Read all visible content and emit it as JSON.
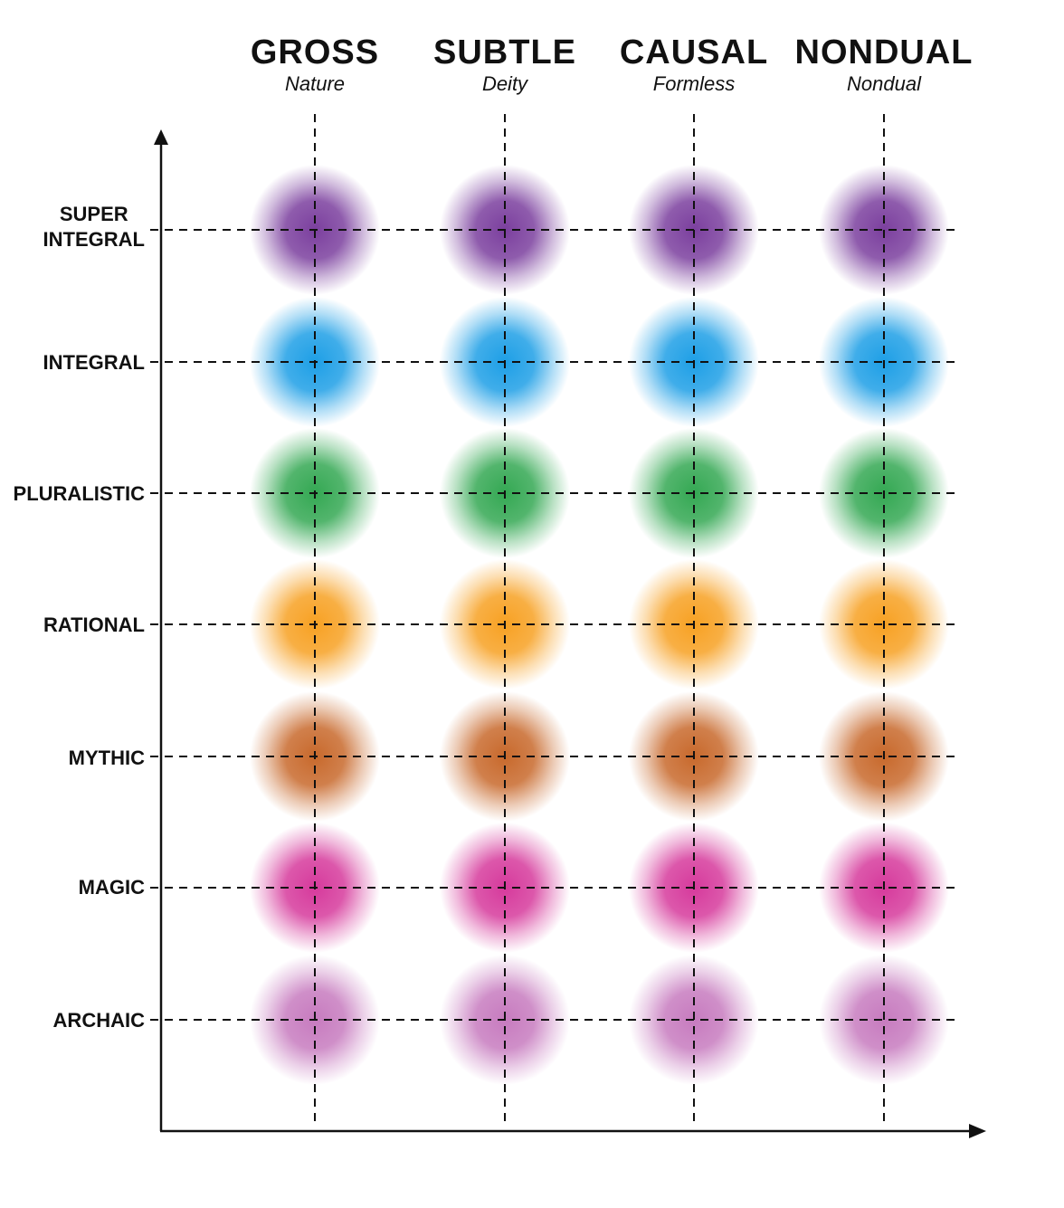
{
  "columns": [
    {
      "title": "GROSS",
      "subtitle": "Nature"
    },
    {
      "title": "SUBTLE",
      "subtitle": "Deity"
    },
    {
      "title": "CAUSAL",
      "subtitle": "Formless"
    },
    {
      "title": "NONDUAL",
      "subtitle": "Nondual"
    }
  ],
  "rows": [
    {
      "label": "SUPER\nINTEGRAL",
      "color": "#7b3f9e"
    },
    {
      "label": "INTEGRAL",
      "color": "#1e9fe6"
    },
    {
      "label": "PLURALISTIC",
      "color": "#34a853"
    },
    {
      "label": "RATIONAL",
      "color": "#f7a123"
    },
    {
      "label": "MYTHIC",
      "color": "#c8692c"
    },
    {
      "label": "MAGIC",
      "color": "#d63a9c"
    },
    {
      "label": "ARCHAIC",
      "color": "#c77bbf"
    }
  ]
}
